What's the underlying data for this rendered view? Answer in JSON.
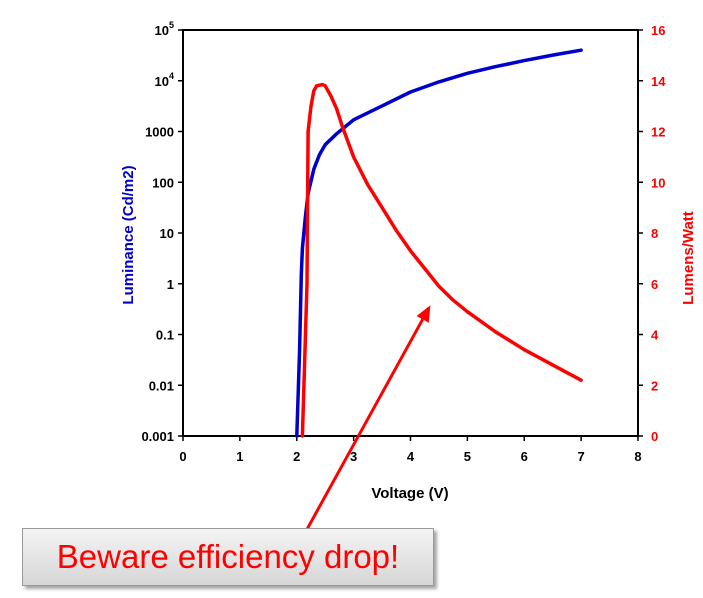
{
  "colors": {
    "luminance": "#0000cc",
    "efficiency": "#ff0000",
    "axis": "#000000"
  },
  "chart_data": {
    "type": "line",
    "xlabel": "Voltage (V)",
    "x_ticks": [
      "0",
      "1",
      "2",
      "3",
      "4",
      "5",
      "6",
      "7",
      "8"
    ],
    "xlim": [
      0,
      8
    ],
    "y_left": {
      "label": "Luminance (Cd/m2)",
      "scale": "log",
      "lim": [
        0.001,
        100000
      ],
      "tick_values": [
        0.001,
        0.01,
        0.1,
        1,
        10,
        100,
        1000,
        10000,
        100000
      ],
      "ticks": [
        {
          "base": "0.001",
          "exp": ""
        },
        {
          "base": "0.01",
          "exp": ""
        },
        {
          "base": "0.1",
          "exp": ""
        },
        {
          "base": "1",
          "exp": ""
        },
        {
          "base": "10",
          "exp": ""
        },
        {
          "base": "100",
          "exp": ""
        },
        {
          "base": "1000",
          "exp": ""
        },
        {
          "base": "10",
          "exp": "4"
        },
        {
          "base": "10",
          "exp": "5"
        }
      ]
    },
    "y_right": {
      "label": "Lumens/Watt",
      "lim": [
        0,
        16
      ],
      "ticks": [
        "0",
        "2",
        "4",
        "6",
        "8",
        "10",
        "12",
        "14",
        "16"
      ]
    },
    "series": [
      {
        "axis": "left",
        "color": "#0000cc",
        "points": [
          [
            2.0,
            0.001
          ],
          [
            2.05,
            0.05
          ],
          [
            2.08,
            1.5
          ],
          [
            2.1,
            5
          ],
          [
            2.15,
            20
          ],
          [
            2.2,
            60
          ],
          [
            2.3,
            180
          ],
          [
            2.4,
            350
          ],
          [
            2.5,
            550
          ],
          [
            2.7,
            900
          ],
          [
            3.0,
            1700
          ],
          [
            3.5,
            3200
          ],
          [
            4.0,
            6000
          ],
          [
            4.5,
            9500
          ],
          [
            5.0,
            14000
          ],
          [
            5.5,
            19000
          ],
          [
            6.0,
            25000
          ],
          [
            6.5,
            32000
          ],
          [
            7.0,
            40000
          ]
        ]
      },
      {
        "axis": "right",
        "color": "#ff0000",
        "points": [
          [
            2.1,
            0
          ],
          [
            2.18,
            6
          ],
          [
            2.2,
            12
          ],
          [
            2.25,
            13
          ],
          [
            2.3,
            13.6
          ],
          [
            2.35,
            13.8
          ],
          [
            2.45,
            13.85
          ],
          [
            2.5,
            13.8
          ],
          [
            2.6,
            13.4
          ],
          [
            2.7,
            12.9
          ],
          [
            2.8,
            12.2
          ],
          [
            3.0,
            11.0
          ],
          [
            3.25,
            9.9
          ],
          [
            3.5,
            9.0
          ],
          [
            3.75,
            8.1
          ],
          [
            4.0,
            7.3
          ],
          [
            4.25,
            6.6
          ],
          [
            4.5,
            5.9
          ],
          [
            4.75,
            5.35
          ],
          [
            5.0,
            4.9
          ],
          [
            5.5,
            4.1
          ],
          [
            6.0,
            3.4
          ],
          [
            6.5,
            2.8
          ],
          [
            7.0,
            2.2
          ]
        ]
      }
    ]
  },
  "annotation": {
    "text": "Beware efficiency drop!",
    "from_xy_right": [
      2.15,
      -3.8
    ],
    "to_xy_right": [
      4.35,
      5.15
    ]
  }
}
